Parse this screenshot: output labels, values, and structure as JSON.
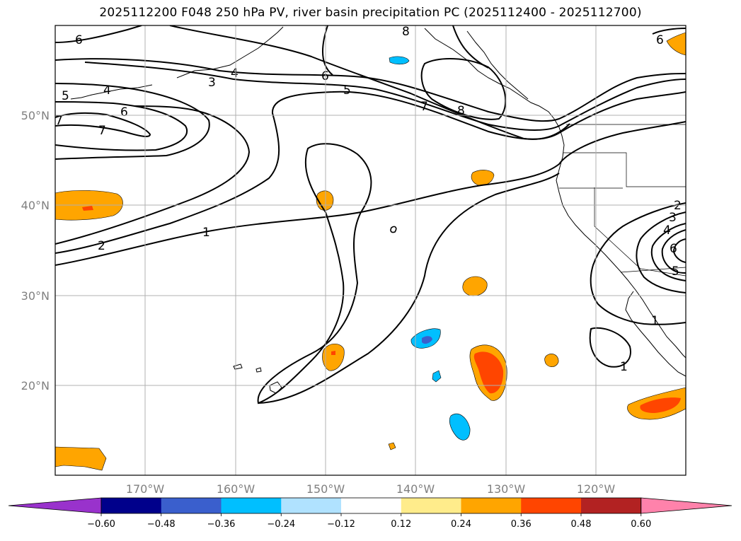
{
  "title": "2025112200 F048 250 hPa PV, river basin precipitation PC (2025112400 - 2025112700)",
  "axes": {
    "lat_labels": [
      "50°N",
      "40°N",
      "30°N",
      "20°N"
    ],
    "lon_labels": [
      "170°W",
      "160°W",
      "150°W",
      "140°W",
      "130°W",
      "120°W"
    ]
  },
  "colorbar": {
    "tick_labels": [
      "−0.60",
      "−0.48",
      "−0.36",
      "−0.24",
      "−0.12",
      "0.12",
      "0.24",
      "0.36",
      "0.48",
      "0.60"
    ],
    "colors": [
      "#9932cc",
      "#00008b",
      "#3a5fcd",
      "#00bfff",
      "#b0e2ff",
      "#ffffff",
      "#ffec8b",
      "#ffa500",
      "#ff4500",
      "#b22222",
      "#ff82ab"
    ]
  },
  "pv_contour_labels": [
    "1",
    "2",
    "3",
    "4",
    "5",
    "6",
    "7",
    "8"
  ],
  "precip_colors": {
    "positive_low": "#ffa500",
    "positive_mid": "#ff4500",
    "negative_low": "#00bfff",
    "negative_mid": "#3a5fcd"
  }
}
